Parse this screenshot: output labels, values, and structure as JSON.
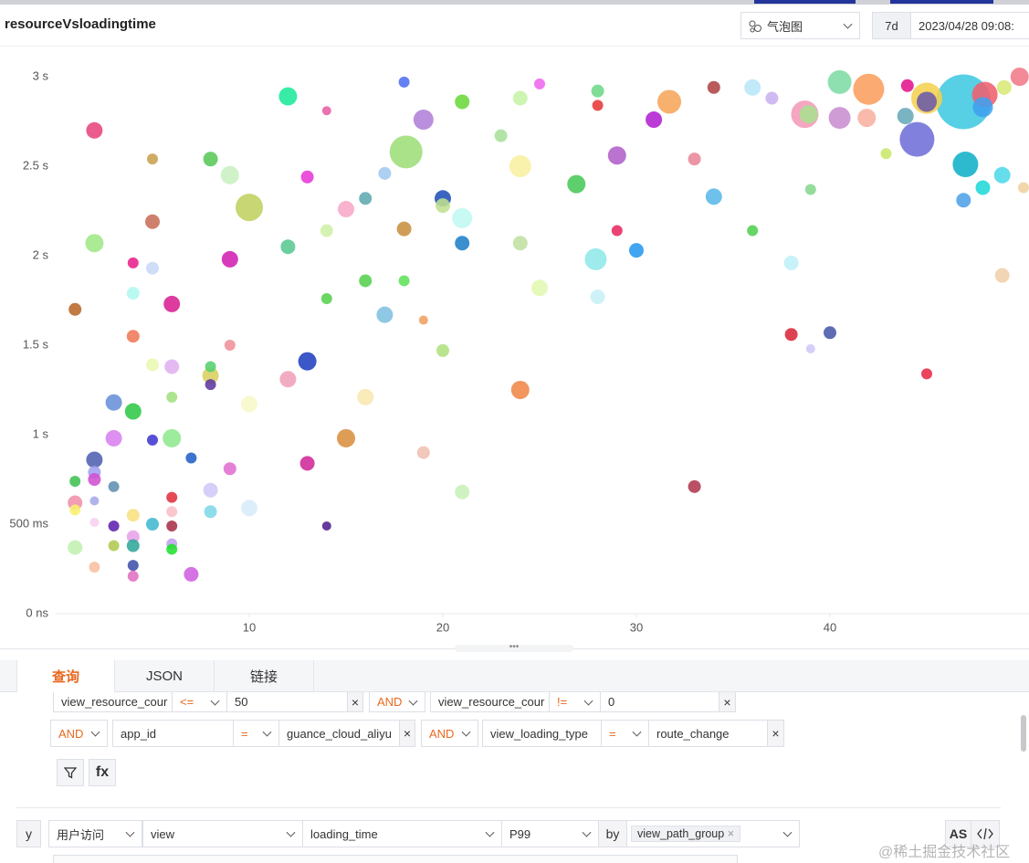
{
  "header": {
    "title": "resourceVsloadingtime",
    "chart_type": "气泡图",
    "range": "7d",
    "time": "2023/04/28 09:08:"
  },
  "chart_data": {
    "type": "bubble",
    "x": [
      2,
      12,
      18,
      21,
      19,
      18.1,
      14,
      25,
      24,
      28,
      28,
      31.7,
      34,
      36,
      37,
      40.5,
      42,
      44,
      46.9,
      45,
      45,
      48,
      49.8,
      49,
      47.9,
      44.5,
      43.9,
      38.7,
      38.9,
      40.5,
      41.9,
      30.9,
      23,
      29,
      24,
      26.9,
      33,
      42.9,
      47,
      48.9,
      47.9,
      46.9,
      50,
      39,
      34,
      5,
      8,
      9,
      10,
      13,
      15,
      16,
      17,
      20,
      20,
      21,
      18,
      14,
      5,
      2,
      12,
      21,
      24,
      29,
      27.9,
      30,
      36,
      38,
      48.9,
      4,
      5,
      9,
      4,
      6,
      1,
      16,
      18,
      14,
      17,
      25,
      28,
      19,
      4,
      9,
      20,
      38,
      40,
      39,
      45,
      5,
      6,
      8,
      8,
      8,
      13,
      12,
      3,
      4,
      6,
      10,
      16,
      24,
      3,
      5,
      6,
      15,
      7,
      2,
      13,
      9,
      19,
      33,
      1,
      2,
      2,
      3,
      8,
      21,
      6,
      10,
      8,
      6,
      1,
      1,
      2,
      4,
      2,
      3,
      5,
      6,
      14,
      4,
      3,
      4,
      6,
      6,
      1,
      4,
      2,
      4,
      7
    ],
    "values": [
      2.7,
      2.89,
      2.97,
      2.86,
      2.76,
      2.58,
      2.81,
      2.96,
      2.88,
      2.92,
      2.84,
      2.86,
      2.94,
      2.94,
      2.88,
      2.97,
      2.93,
      2.95,
      2.86,
      2.88,
      2.86,
      2.9,
      3.0,
      2.94,
      2.83,
      2.65,
      2.78,
      2.79,
      2.79,
      2.77,
      2.77,
      2.76,
      2.67,
      2.56,
      2.5,
      2.4,
      2.54,
      2.57,
      2.51,
      2.45,
      2.38,
      2.31,
      2.38,
      2.37,
      2.33,
      2.54,
      2.54,
      2.45,
      2.27,
      2.44,
      2.26,
      2.32,
      2.46,
      2.32,
      2.28,
      2.21,
      2.15,
      2.14,
      2.19,
      2.07,
      2.05,
      2.07,
      2.07,
      2.14,
      1.98,
      2.03,
      2.14,
      1.96,
      1.89,
      1.96,
      1.93,
      1.98,
      1.79,
      1.73,
      1.7,
      1.86,
      1.86,
      1.76,
      1.67,
      1.82,
      1.77,
      1.64,
      1.55,
      1.5,
      1.47,
      1.56,
      1.57,
      1.48,
      1.34,
      1.39,
      1.38,
      1.33,
      1.38,
      1.28,
      1.41,
      1.31,
      1.18,
      1.13,
      1.21,
      1.17,
      1.21,
      1.25,
      0.98,
      0.97,
      0.98,
      0.98,
      0.87,
      0.86,
      0.84,
      0.81,
      0.9,
      0.71,
      0.74,
      0.79,
      0.75,
      0.71,
      0.69,
      0.68,
      0.65,
      0.59,
      0.57,
      0.57,
      0.62,
      0.58,
      0.63,
      0.55,
      0.51,
      0.49,
      0.5,
      0.49,
      0.49,
      0.43,
      0.38,
      0.38,
      0.39,
      0.36,
      0.37,
      0.27,
      0.26,
      0.21,
      0.22
    ],
    "sizes": [
      9,
      10,
      6,
      8,
      11,
      18,
      5,
      6,
      8,
      7,
      6,
      13,
      7,
      9,
      7,
      13,
      17,
      7,
      30,
      17,
      11,
      14,
      10,
      8,
      11,
      19,
      9,
      15,
      10,
      12,
      10,
      9,
      7,
      10,
      12,
      10,
      7,
      6,
      14,
      9,
      8,
      8,
      6,
      6,
      9,
      6,
      8,
      10,
      15,
      7,
      9,
      7,
      7,
      9,
      8,
      11,
      8,
      7,
      8,
      10,
      8,
      8,
      8,
      6,
      12,
      8,
      6,
      8,
      8,
      6,
      7,
      9,
      7,
      9,
      7,
      7,
      6,
      6,
      9,
      9,
      8,
      5,
      7,
      6,
      7,
      7,
      7,
      5,
      6,
      7,
      8,
      9,
      6,
      6,
      10,
      9,
      9,
      9,
      6,
      9,
      9,
      10,
      9,
      6,
      10,
      10,
      6,
      9,
      8,
      7,
      7,
      7,
      6,
      7,
      7,
      6,
      8,
      8,
      6,
      9,
      7,
      6,
      8,
      6,
      5,
      7,
      5,
      6,
      7,
      6,
      5,
      7,
      6,
      7,
      6,
      6,
      8,
      6,
      6,
      6,
      8
    ],
    "colors": [
      "#e8457e",
      "#1de99a",
      "#4f6ef0",
      "#6ad83a",
      "#b07fd8",
      "#9ede7a",
      "#e85fa5",
      "#ee66ee",
      "#c6f2a8",
      "#6ed88a",
      "#e83838",
      "#f6a55a",
      "#b04444",
      "#b8e6f8",
      "#c8b0f0",
      "#7fdca6",
      "#fb9e5e",
      "#e3158d",
      "#40c8e0",
      "#f5d050",
      "#6a5aa8",
      "#f0606e",
      "#f07a8a",
      "#d8e878",
      "#40a0f0",
      "#7070d8",
      "#68a8b8",
      "#f49ab8",
      "#a8e090",
      "#c88ed0",
      "#f8b0a0",
      "#b020d0",
      "#a8e098",
      "#b060c8",
      "#f8f0a0",
      "#48c858",
      "#e88898",
      "#c8e868",
      "#10b0c8",
      "#50d8e8",
      "#20d8d8",
      "#50a0e8",
      "#f0d0a0",
      "#88d890",
      "#5ab8e8",
      "#c8a050",
      "#58c858",
      "#c8f0c0",
      "#c0d060",
      "#e838d8",
      "#f8a8c8",
      "#60a8b0",
      "#a0c8f0",
      "#2050b8",
      "#c0e090",
      "#c0f8f0",
      "#c89040",
      "#d0f0a8",
      "#c86e58",
      "#a0e888",
      "#58c890",
      "#2080c8",
      "#c0e0a0",
      "#e82860",
      "#90e8e8",
      "#2898f0",
      "#50d050",
      "#c0f0f8",
      "#f0d0a8",
      "#e8208a",
      "#c8d8f8",
      "#d020b0",
      "#b0f8f0",
      "#d82090",
      "#b86828",
      "#58d050",
      "#60e058",
      "#58d050",
      "#80c0e0",
      "#e0f8b0",
      "#c8f0f8",
      "#f0a060",
      "#f07858",
      "#f09098",
      "#b0e080",
      "#d82838",
      "#4858a8",
      "#d0c8f8",
      "#e82848",
      "#e8f8b0",
      "#e0b0f0",
      "#d8d060",
      "#58d070",
      "#6038a0",
      "#2040c0",
      "#f0a0b8",
      "#6890d8",
      "#30c848",
      "#a0e080",
      "#f8f8c8",
      "#f8e8b0",
      "#f08848",
      "#d880f0",
      "#4038d0",
      "#90e890",
      "#d89040",
      "#2060c8",
      "#5060b0",
      "#d02898",
      "#e070d0",
      "#f0c0b0",
      "#b03850",
      "#40c050",
      "#a0a0f0",
      "#d050d0",
      "#6090b0",
      "#d0c8f8",
      "#c8f0b8",
      "#e03040",
      "#d8ecfa",
      "#80d8e8",
      "#f8c0c8",
      "#f090a8",
      "#f8f070",
      "#a8a8e8",
      "#f8e080",
      "#f8d0f0",
      "#6020b0",
      "#40b8d0",
      "#a83048",
      "#502090",
      "#e8a0e8",
      "#b0c850",
      "#30a898",
      "#c0a0f0",
      "#20e030",
      "#c0f0b0",
      "#4050a8",
      "#f8c0a0",
      "#e070c0",
      "#d060e0"
    ],
    "xlim": [
      0,
      50
    ],
    "xticks": [
      10,
      20,
      30,
      40
    ],
    "ylim": [
      0,
      3.1
    ],
    "yticks": [
      {
        "value": 0,
        "label": "0 ns"
      },
      {
        "value": 0.5,
        "label": "500 ms"
      },
      {
        "value": 1,
        "label": "1 s"
      },
      {
        "value": 1.5,
        "label": "1.5 s"
      },
      {
        "value": 2,
        "label": "2 s"
      },
      {
        "value": 2.5,
        "label": "2.5 s"
      },
      {
        "value": 3,
        "label": "3 s"
      }
    ],
    "grid": false
  },
  "tabs": [
    "查询",
    "JSON",
    "链接"
  ],
  "filters": [
    [
      "view_resource_cour",
      "<=",
      "50",
      "AND",
      "view_resource_cour",
      "!=",
      "0"
    ],
    [
      "AND",
      "app_id",
      "=",
      "guance_cloud_aliyu",
      "AND",
      "view_loading_type",
      "=",
      "route_change"
    ]
  ],
  "buttons": [
    "fx"
  ],
  "query": {
    "axis": "y",
    "source": "用户访问",
    "object": "view",
    "field": "loading_time",
    "function": "P99",
    "by": "by",
    "group": "view_path_group",
    "alias": "AS"
  },
  "watermark": "@稀土掘金技术社区"
}
